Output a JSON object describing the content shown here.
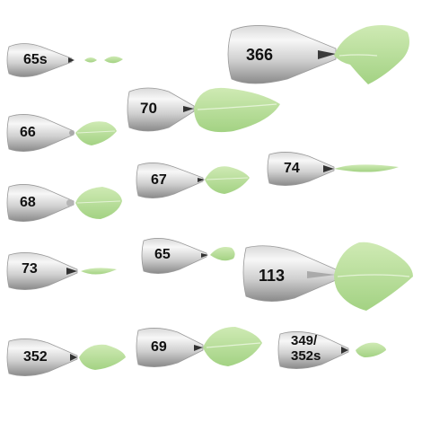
{
  "tips": [
    {
      "id": "t65s",
      "label": "65s"
    },
    {
      "id": "t366",
      "label": "366"
    },
    {
      "id": "t70",
      "label": "70"
    },
    {
      "id": "t66",
      "label": "66"
    },
    {
      "id": "t67",
      "label": "67"
    },
    {
      "id": "t74",
      "label": "74"
    },
    {
      "id": "t68",
      "label": "68"
    },
    {
      "id": "t73",
      "label": "73"
    },
    {
      "id": "t65",
      "label": "65"
    },
    {
      "id": "t113",
      "label": "113"
    },
    {
      "id": "t352",
      "label": "352"
    },
    {
      "id": "t69",
      "label": "69"
    },
    {
      "id": "t349",
      "label_line1": "349/",
      "label_line2": "352s"
    }
  ],
  "colors": {
    "metal_light": "#f4f4f4",
    "metal_mid": "#c9c9c9",
    "metal_dark": "#6e6e6e",
    "leaf_light": "#c6e6a8",
    "leaf_mid": "#a6d486",
    "leaf_vein": "#e4f3d6"
  },
  "icons": [
    "piping-tip-icon",
    "leaf-icon"
  ]
}
